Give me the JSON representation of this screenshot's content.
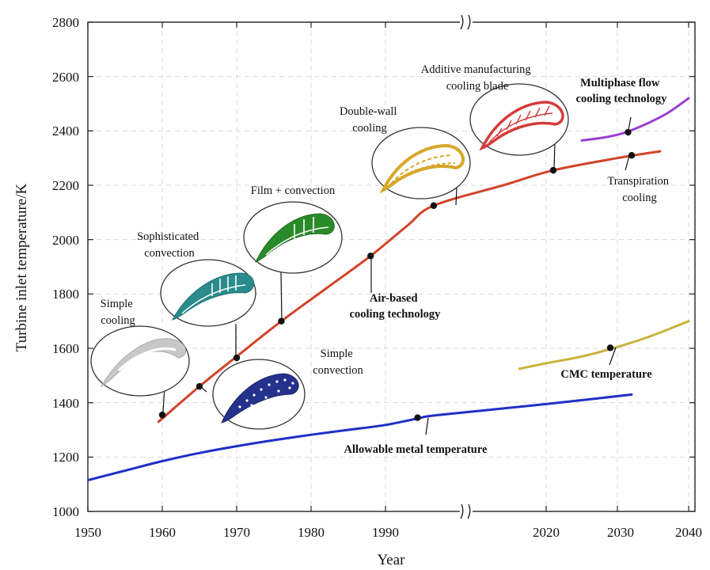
{
  "chart_data": {
    "type": "line",
    "title": "",
    "xlabel": "Year",
    "ylabel": "Turbine inlet temperature/K",
    "xlim": [
      1950,
      2040
    ],
    "ylim": [
      1000,
      2800
    ],
    "grid": true,
    "axis_break": "between 1990 and 2020",
    "x_ticks": [
      "1950",
      "1960",
      "1970",
      "1980",
      "1990",
      "2020",
      "2030",
      "2040"
    ],
    "y_ticks": [
      "1000",
      "1200",
      "1400",
      "1600",
      "1800",
      "2000",
      "2200",
      "2400",
      "2600",
      "2800"
    ],
    "series": [
      {
        "name": "Air-based cooling technology",
        "color": "#d2432b",
        "x": [
          1959.5,
          1965,
          1970,
          1976,
          1982,
          1988,
          1994,
          1999,
          2012,
          2021,
          2030,
          2036
        ],
        "y": [
          1330,
          1460,
          1570,
          1700,
          1820,
          1940,
          2050,
          2125,
          2200,
          2255,
          2300,
          2325
        ],
        "markers": [
          [
            1960,
            1355
          ],
          [
            1965,
            1460
          ],
          [
            1970,
            1565
          ],
          [
            1976,
            1700
          ],
          [
            1988,
            1940
          ],
          [
            1999,
            2125
          ],
          [
            2021,
            2255
          ],
          [
            2032,
            2310
          ]
        ]
      },
      {
        "name": "Allowable metal temperature",
        "color": "#1f2fc7",
        "x": [
          1950,
          1955,
          1960,
          1965,
          1970,
          1975,
          1980,
          1985,
          1990,
          1996,
          2000,
          2020,
          2032
        ],
        "y": [
          1115,
          1150,
          1185,
          1215,
          1240,
          1262,
          1282,
          1300,
          1318,
          1342,
          1355,
          1395,
          1430
        ],
        "markers": [
          [
            1996,
            1345
          ]
        ]
      },
      {
        "name": "CMC temperature",
        "color": "#c9b23a",
        "x": [
          2015,
          2020,
          2025,
          2030,
          2035,
          2040
        ],
        "y": [
          1525,
          1545,
          1570,
          1605,
          1648,
          1700
        ],
        "markers": [
          [
            2029,
            1602
          ]
        ]
      },
      {
        "name": "Multiphase flow cooling technology",
        "color": "#9a3fd6",
        "x": [
          2025,
          2028,
          2031,
          2034,
          2037,
          2040
        ],
        "y": [
          2365,
          2375,
          2393,
          2425,
          2465,
          2520
        ],
        "markers": [
          [
            2031.5,
            2395
          ]
        ]
      }
    ],
    "annotations": [
      {
        "text": [
          "Simple",
          "cooling"
        ],
        "bold": false
      },
      {
        "text": [
          "Sophisticated",
          "convection"
        ],
        "bold": false
      },
      {
        "text": [
          "Film + convection"
        ],
        "bold": false
      },
      {
        "text": [
          "Simple",
          "convection"
        ],
        "bold": false
      },
      {
        "text": [
          "Double-wall",
          "cooling"
        ],
        "bold": false
      },
      {
        "text": [
          "Additive manufacturing",
          "cooling blade"
        ],
        "bold": false
      },
      {
        "text": [
          "Multiphase flow",
          "cooling technology"
        ],
        "bold": true
      },
      {
        "text": [
          "Transpiration",
          "cooling"
        ],
        "bold": false
      },
      {
        "text": [
          "Air-based",
          "cooling technology"
        ],
        "bold": true
      },
      {
        "text": [
          "CMC temperature"
        ],
        "bold": true
      },
      {
        "text": [
          "Allowable metal temperature"
        ],
        "bold": true
      }
    ],
    "blade_colors": {
      "simple_cooling": "#c8c8c8",
      "sophisticated_convection": "#2a8c8c",
      "film_convection": "#2a8a2a",
      "simple_convection": "#24328c",
      "double_wall": "#d7a72a",
      "additive_manufacturing": "#d43b3b"
    }
  }
}
